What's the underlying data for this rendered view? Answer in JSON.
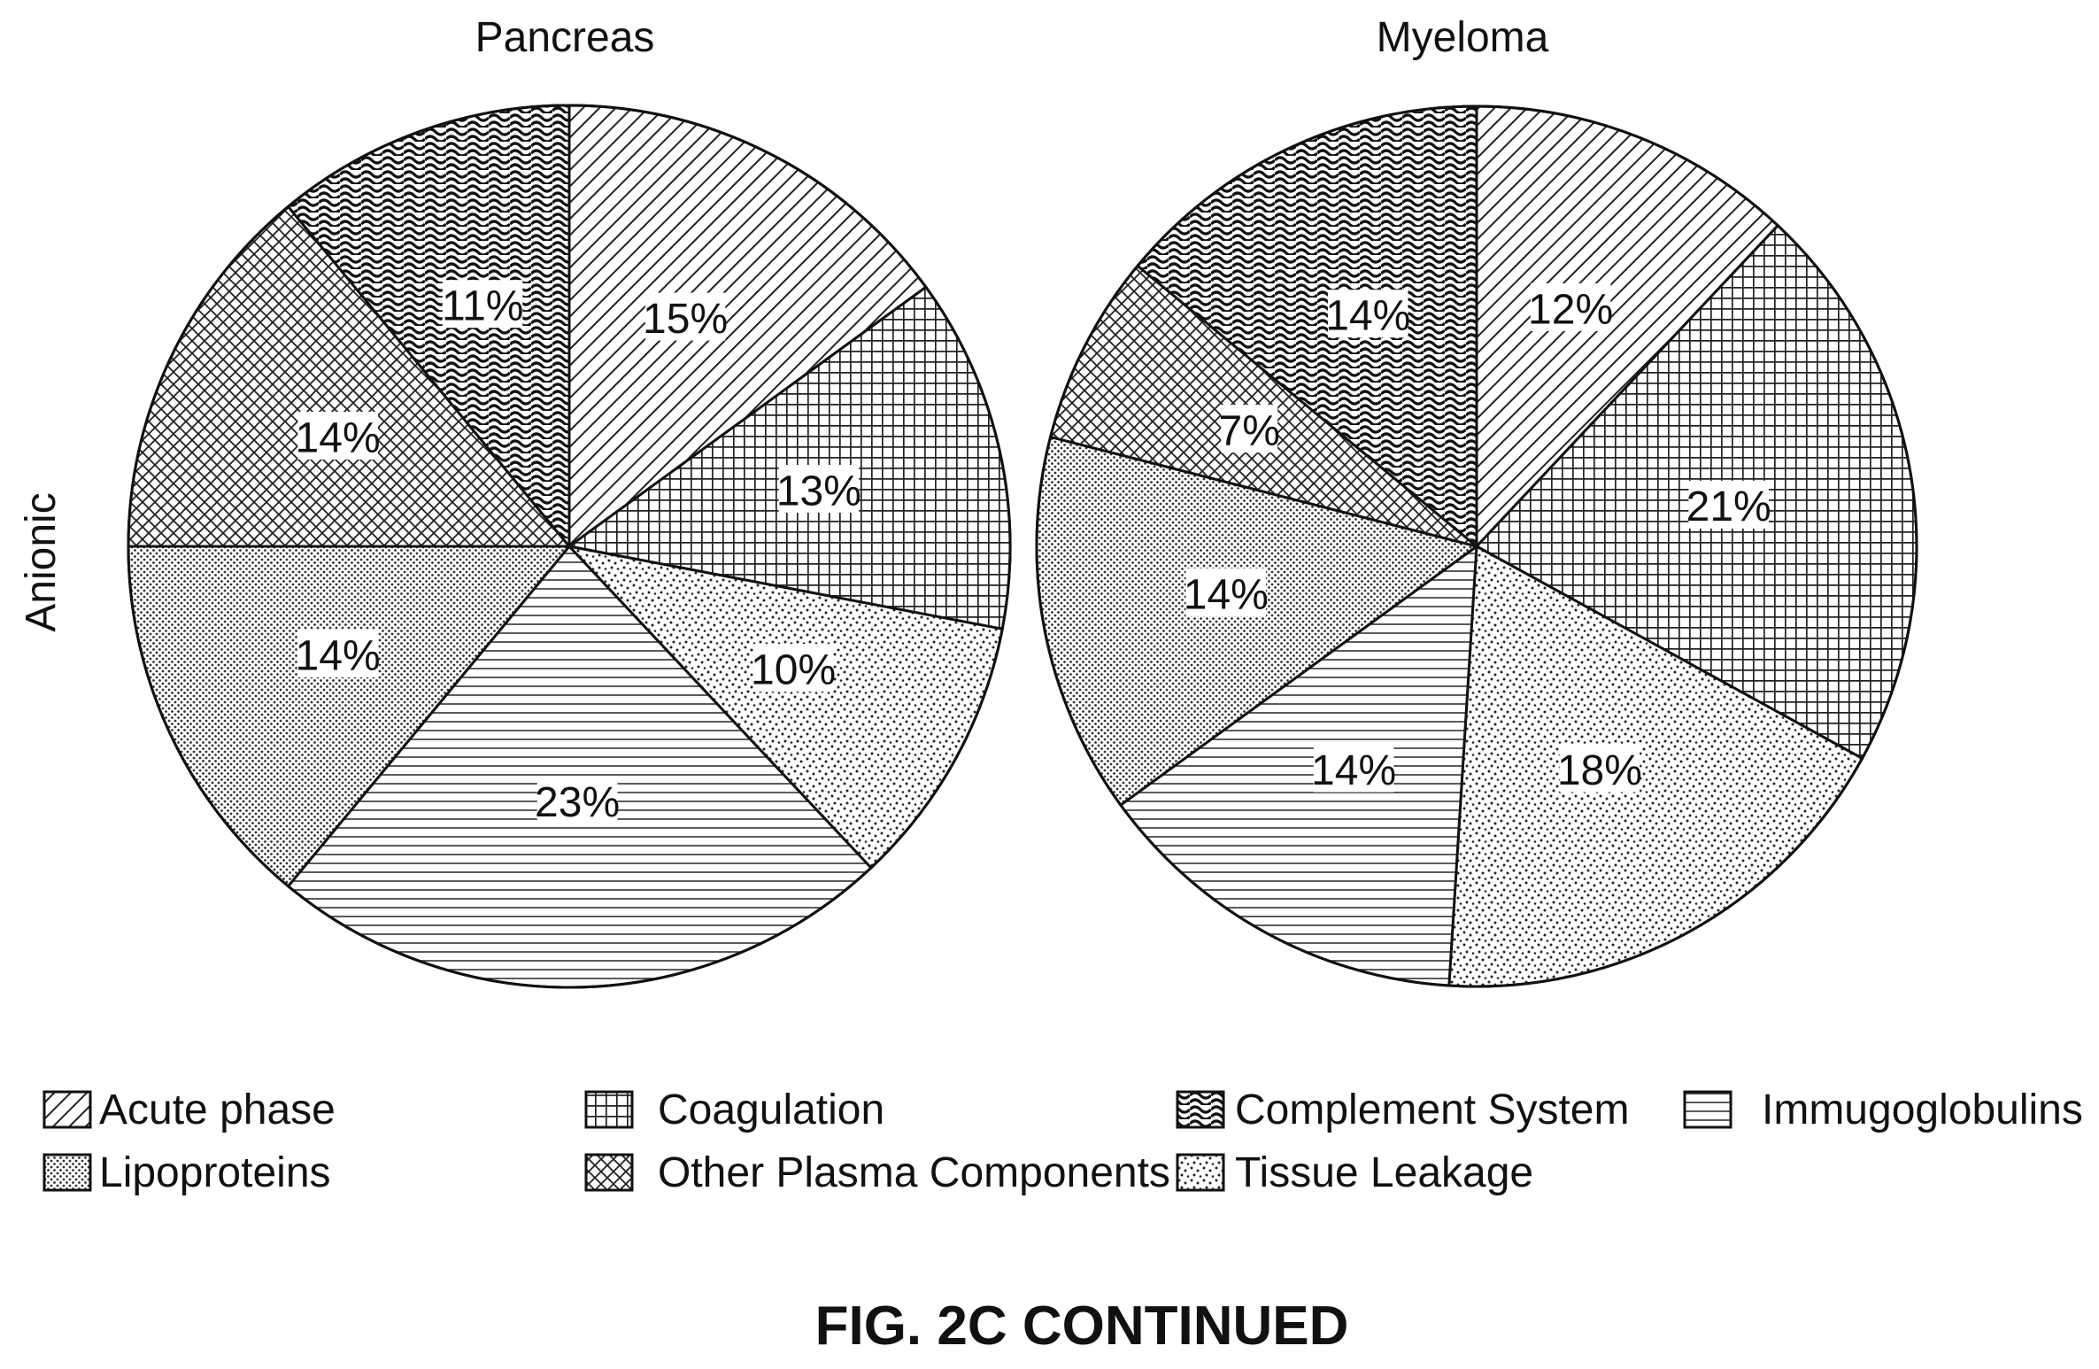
{
  "figure": {
    "row_label": "Anionic",
    "caption": "FIG. 2C CONTINUED"
  },
  "legend": [
    {
      "label": "Acute phase",
      "pattern": "diag"
    },
    {
      "label": "Coagulation",
      "pattern": "grid"
    },
    {
      "label": "Complement System",
      "pattern": "wave"
    },
    {
      "label": "Immugoglobulins",
      "pattern": "hlines"
    },
    {
      "label": "Lipoproteins",
      "pattern": "dense-dots"
    },
    {
      "label": "Other Plasma Components",
      "pattern": "crosshatch"
    },
    {
      "label": "Tissue Leakage",
      "pattern": "sparse-dots"
    }
  ],
  "chart_data": [
    {
      "type": "pie",
      "title": "Pancreas",
      "slices": [
        {
          "category": "Acute phase",
          "value": 15,
          "label": "15%"
        },
        {
          "category": "Coagulation",
          "value": 13,
          "label": "13%"
        },
        {
          "category": "Tissue Leakage",
          "value": 10,
          "label": "10%"
        },
        {
          "category": "Immugoglobulins",
          "value": 23,
          "label": "23%"
        },
        {
          "category": "Lipoproteins",
          "value": 14,
          "label": "14%"
        },
        {
          "category": "Other Plasma Components",
          "value": 14,
          "label": "14%"
        },
        {
          "category": "Complement System",
          "value": 11,
          "label": "11%"
        }
      ]
    },
    {
      "type": "pie",
      "title": "Myeloma",
      "slices": [
        {
          "category": "Acute phase",
          "value": 12,
          "label": "12%"
        },
        {
          "category": "Coagulation",
          "value": 21,
          "label": "21%"
        },
        {
          "category": "Tissue Leakage",
          "value": 18,
          "label": "18%"
        },
        {
          "category": "Immugoglobulins",
          "value": 14,
          "label": "14%"
        },
        {
          "category": "Lipoproteins",
          "value": 14,
          "label": "14%"
        },
        {
          "category": "Other Plasma Components",
          "value": 7,
          "label": "7%"
        },
        {
          "category": "Complement System",
          "value": 14,
          "label": "14%"
        }
      ]
    }
  ]
}
